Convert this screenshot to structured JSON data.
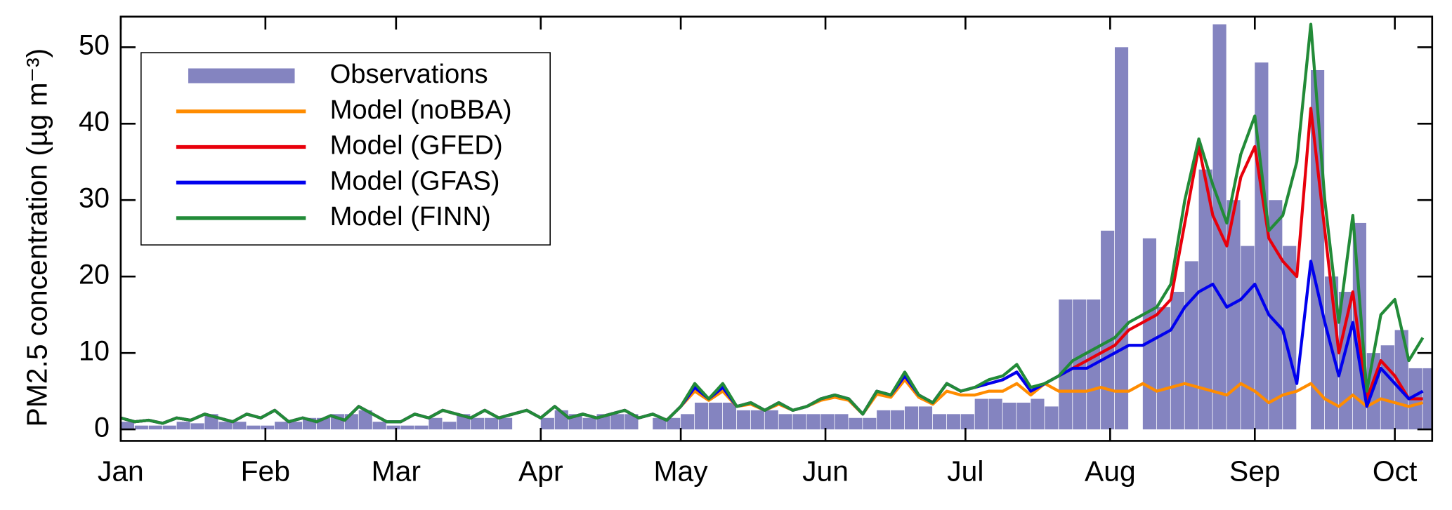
{
  "chart_data": {
    "type": "line",
    "ylabel": "PM2.5 concentration (µg m⁻³)",
    "xlim": [
      0,
      281
    ],
    "ylim": [
      -1.5,
      54
    ],
    "xticks": [
      {
        "value": 0,
        "label": "Jan"
      },
      {
        "value": 31,
        "label": "Feb"
      },
      {
        "value": 59,
        "label": "Mar"
      },
      {
        "value": 90,
        "label": "Apr"
      },
      {
        "value": 120,
        "label": "May"
      },
      {
        "value": 151,
        "label": "Jun"
      },
      {
        "value": 181,
        "label": "Jul"
      },
      {
        "value": 212,
        "label": "Aug"
      },
      {
        "value": 243,
        "label": "Sep"
      },
      {
        "value": 273,
        "label": "Oct"
      }
    ],
    "yticks": [
      0,
      10,
      20,
      30,
      40,
      50
    ],
    "legend": "upper left",
    "x": [
      0,
      3,
      6,
      9,
      12,
      15,
      18,
      21,
      24,
      27,
      30,
      33,
      36,
      39,
      42,
      45,
      48,
      51,
      54,
      57,
      60,
      63,
      66,
      69,
      72,
      75,
      78,
      81,
      84,
      87,
      90,
      93,
      96,
      99,
      102,
      105,
      108,
      111,
      114,
      117,
      120,
      123,
      126,
      129,
      132,
      135,
      138,
      141,
      144,
      147,
      150,
      153,
      156,
      159,
      162,
      165,
      168,
      171,
      174,
      177,
      180,
      183,
      186,
      189,
      192,
      195,
      198,
      201,
      204,
      207,
      210,
      213,
      216,
      219,
      222,
      225,
      228,
      231,
      234,
      237,
      240,
      243,
      246,
      249,
      252,
      255,
      258,
      261,
      264,
      267,
      270,
      273,
      276,
      279
    ],
    "series": [
      {
        "name": "Observations",
        "type": "bar",
        "color": "#8484c0",
        "values": [
          1,
          0.5,
          0.5,
          0.5,
          1,
          0.8,
          2,
          1,
          1,
          0.5,
          0.5,
          1,
          1,
          1.5,
          1.5,
          2,
          2,
          2.5,
          1,
          0.5,
          0.5,
          0.5,
          1.5,
          1,
          2,
          1.5,
          1.5,
          1.5,
          null,
          null,
          1.5,
          2.5,
          2,
          1.5,
          2,
          2,
          2,
          null,
          1.5,
          1.5,
          2,
          3.5,
          3.5,
          3.5,
          2.5,
          2.5,
          2.5,
          2,
          2,
          2,
          2,
          2,
          1.5,
          1.5,
          2.5,
          2.5,
          3,
          3,
          2,
          2,
          2,
          4,
          4,
          3.5,
          3.5,
          4,
          3,
          17,
          17,
          17,
          26,
          50,
          null,
          25,
          16,
          18,
          22,
          34,
          53,
          30,
          24,
          48,
          30,
          24,
          null,
          47,
          20,
          18,
          27,
          10,
          11,
          13,
          8,
          8
        ]
      },
      {
        "name": "Model (noBBA)",
        "type": "line",
        "color": "#ff8c00",
        "values": [
          1.5,
          1,
          1.2,
          0.8,
          1.5,
          1.2,
          2,
          1.5,
          1,
          2,
          1.5,
          2.5,
          1,
          1.5,
          1,
          1.8,
          1.2,
          3,
          2,
          1,
          1,
          2,
          1.5,
          2.5,
          2,
          1.5,
          2.5,
          1.5,
          2,
          2.5,
          1.5,
          3,
          1.5,
          2,
          1.5,
          2,
          2.5,
          1.5,
          2,
          1.2,
          3,
          5,
          3.8,
          5,
          3,
          3.3,
          2.5,
          3.3,
          2.5,
          3,
          3.8,
          4.2,
          3.8,
          2,
          4.6,
          4.2,
          6.5,
          4.2,
          3.3,
          5,
          4.5,
          4.5,
          5,
          5,
          6,
          4.5,
          6,
          5,
          5,
          5,
          5.5,
          5,
          5,
          6,
          5,
          5.5,
          6,
          5.5,
          5,
          4.5,
          6,
          5,
          3.5,
          4.5,
          5,
          6,
          4,
          3,
          4.5,
          3,
          4,
          3.5,
          3,
          3.5
        ]
      },
      {
        "name": "Model (GFED)",
        "type": "line",
        "color": "#e8000b",
        "values": [
          1.5,
          1,
          1.2,
          0.8,
          1.5,
          1.2,
          2,
          1.5,
          1,
          2,
          1.5,
          2.5,
          1,
          1.5,
          1,
          1.8,
          1.2,
          3,
          2,
          1,
          1,
          2,
          1.5,
          2.5,
          2,
          1.5,
          2.5,
          1.5,
          2,
          2.5,
          1.5,
          3,
          1.5,
          2,
          1.5,
          2,
          2.5,
          1.5,
          2,
          1.2,
          3,
          5.5,
          4,
          5.5,
          3,
          3.5,
          2.5,
          3.5,
          2.5,
          3,
          4,
          4.5,
          4,
          2,
          5,
          4.5,
          7,
          4.5,
          3.5,
          6,
          5,
          5.5,
          6,
          6.5,
          7.5,
          5,
          6,
          7,
          8,
          9,
          10,
          11,
          13,
          14,
          15,
          17,
          27,
          37,
          28,
          24,
          33,
          37,
          25,
          22,
          20,
          42,
          26,
          10,
          18,
          4,
          9,
          7,
          4,
          4
        ]
      },
      {
        "name": "Model (GFAS)",
        "type": "line",
        "color": "#0000ee",
        "values": [
          1.5,
          1,
          1.2,
          0.8,
          1.5,
          1.2,
          2,
          1.5,
          1,
          2,
          1.5,
          2.5,
          1,
          1.5,
          1,
          1.8,
          1.2,
          3,
          2,
          1,
          1,
          2,
          1.5,
          2.5,
          2,
          1.5,
          2.5,
          1.5,
          2,
          2.5,
          1.5,
          3,
          1.5,
          2,
          1.5,
          2,
          2.5,
          1.5,
          2,
          1.2,
          3,
          5.5,
          4,
          5.5,
          3,
          3.5,
          2.5,
          3.5,
          2.5,
          3,
          4,
          4.5,
          4,
          2,
          5,
          4.5,
          7,
          4.5,
          3.5,
          6,
          5,
          5.5,
          6,
          6.5,
          7.5,
          5,
          6,
          7,
          8,
          8,
          9,
          10,
          11,
          11,
          12,
          13,
          16,
          18,
          19,
          16,
          17,
          19,
          15,
          13,
          6,
          22,
          14,
          7,
          14,
          3,
          8,
          6,
          4,
          5
        ]
      },
      {
        "name": "Model (FINN)",
        "type": "line",
        "color": "#228b38",
        "values": [
          1.5,
          1,
          1.2,
          0.8,
          1.5,
          1.2,
          2,
          1.5,
          1,
          2,
          1.5,
          2.5,
          1,
          1.5,
          1,
          1.8,
          1.2,
          3,
          2,
          1,
          1,
          2,
          1.5,
          2.5,
          2,
          1.5,
          2.5,
          1.5,
          2,
          2.5,
          1.5,
          3,
          1.5,
          2,
          1.5,
          2,
          2.5,
          1.5,
          2,
          1.2,
          3,
          6,
          4,
          6,
          3,
          3.5,
          2.5,
          3.5,
          2.5,
          3,
          4,
          4.5,
          4,
          2,
          5,
          4.5,
          7.5,
          4.5,
          3.5,
          6,
          5,
          5.5,
          6.5,
          7,
          8.5,
          5.5,
          6,
          7,
          9,
          10,
          11,
          12,
          14,
          15,
          16,
          19,
          30,
          38,
          32,
          27,
          36,
          41,
          26,
          28,
          35,
          53,
          30,
          14,
          28,
          5,
          15,
          17,
          9,
          12
        ]
      }
    ]
  }
}
